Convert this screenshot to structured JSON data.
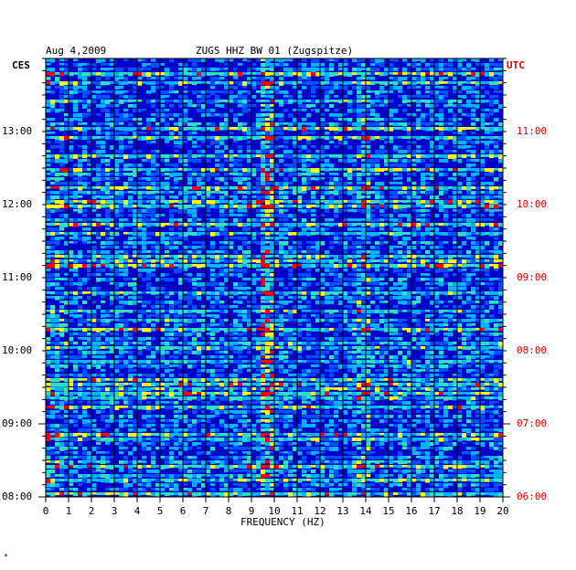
{
  "header": {
    "date": "Aug 4,2009",
    "station": "ZUGS HHZ BW 01 (Zugspitze)"
  },
  "chart_data": {
    "type": "heatmap",
    "title": "ZUGS HHZ BW 01 (Zugspitze)",
    "xlabel": "FREQUENCY (HZ)",
    "left_axis_label": "CES",
    "right_axis_label": "UTC",
    "xlim": [
      0,
      20
    ],
    "x_ticks": [
      "0",
      "1",
      "2",
      "3",
      "4",
      "5",
      "6",
      "7",
      "8",
      "9",
      "10",
      "11",
      "12",
      "13",
      "14",
      "15",
      "16",
      "17",
      "18",
      "19",
      "20"
    ],
    "left_time_ticks": [
      "13:00",
      "12:00",
      "11:00",
      "10:00",
      "09:00",
      "08:00"
    ],
    "right_time_ticks": [
      "11:00",
      "10:00",
      "09:00",
      "08:00",
      "07:00",
      "06:00"
    ],
    "colors": {
      "background": "#0000c8",
      "mid": "#00b4ff",
      "high": "#ffff00",
      "peak": "#ff0000",
      "right_axis": "#e00000"
    },
    "grid": true
  },
  "footer": {
    "mark": "*"
  }
}
